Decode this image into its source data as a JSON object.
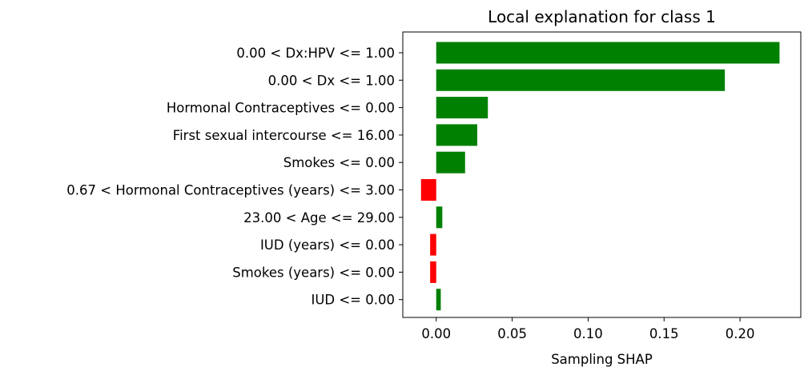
{
  "chart_data": {
    "type": "bar",
    "orientation": "horizontal",
    "title": "Local explanation for class 1",
    "xlabel": "Sampling SHAP",
    "ylabel": "",
    "xlim": [
      -0.022,
      0.24
    ],
    "xticks": [
      0.0,
      0.05,
      0.1,
      0.15,
      0.2
    ],
    "xtick_labels": [
      "0.00",
      "0.05",
      "0.10",
      "0.15",
      "0.20"
    ],
    "categories": [
      "0.00 < Dx:HPV <= 1.00",
      "0.00 < Dx <= 1.00",
      "Hormonal Contraceptives <= 0.00",
      "First sexual intercourse <= 16.00",
      "Smokes <= 0.00",
      "0.67 < Hormonal Contraceptives (years) <= 3.00",
      "23.00 < Age <= 29.00",
      "IUD (years) <= 0.00",
      "Smokes (years) <= 0.00",
      "IUD <= 0.00"
    ],
    "values": [
      0.226,
      0.19,
      0.034,
      0.027,
      0.019,
      -0.01,
      0.004,
      -0.004,
      -0.004,
      0.003
    ],
    "positive_color": "#008000",
    "negative_color": "#ff0000",
    "grid": false,
    "legend": "none"
  }
}
